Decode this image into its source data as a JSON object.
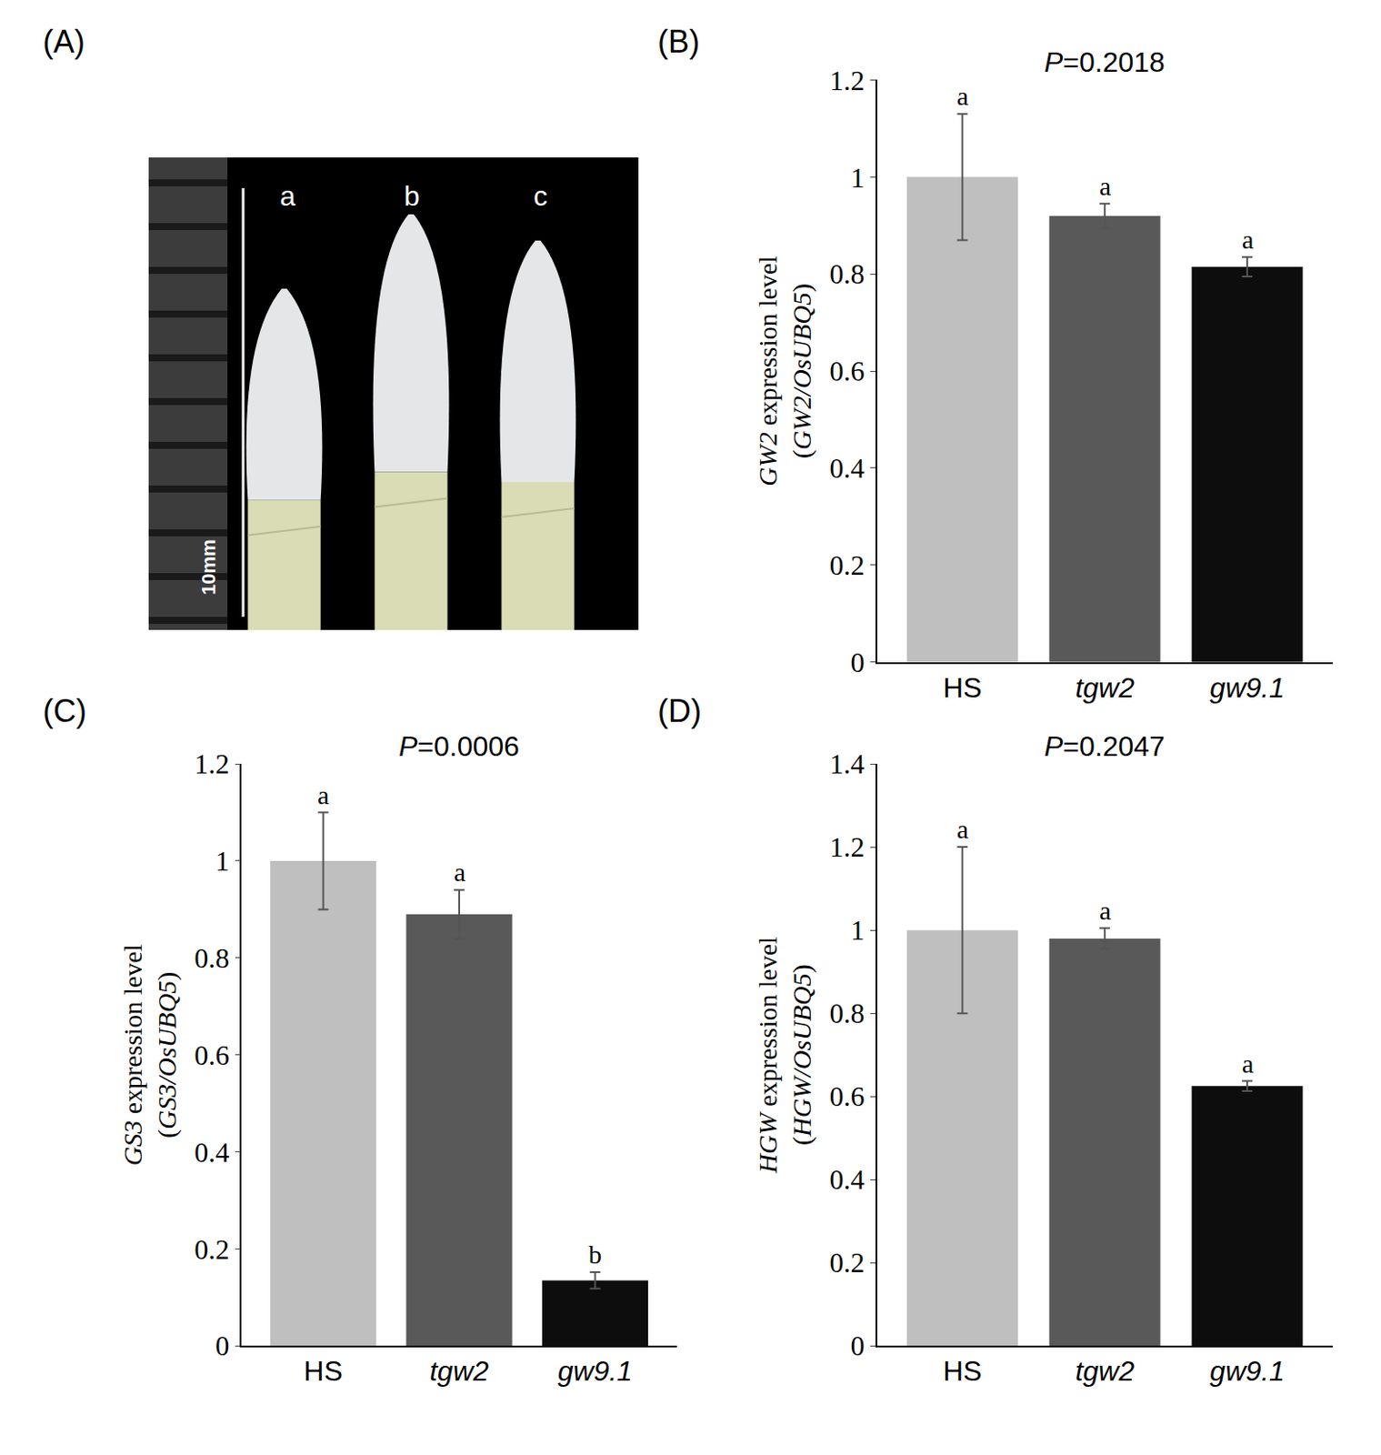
{
  "photo": {
    "panel_label": "(A)",
    "labels": [
      "a",
      "b",
      "c"
    ],
    "scale_label": "10mm"
  },
  "chart_data": [
    {
      "type": "bar",
      "panel_label": "(B)",
      "title": "P=0.2018",
      "y_label": "GW2 expression level (GW2/OsUBQ5)",
      "categories": [
        "HS",
        "tgw2",
        "gw9.1"
      ],
      "values": [
        1.0,
        0.92,
        0.815
      ],
      "errors": [
        0.13,
        0.025,
        0.02
      ],
      "annotations": [
        "a",
        "a",
        "a"
      ],
      "colors": [
        "#bfbfbf",
        "#595959",
        "#0d0d0d"
      ],
      "ylim": [
        0,
        1.2
      ],
      "yticks": [
        0,
        0.2,
        0.4,
        0.6,
        0.8,
        1,
        1.2
      ],
      "grid": false
    },
    {
      "type": "bar",
      "panel_label": "(C)",
      "title": "P=0.0006",
      "y_label": "GS3 expression level (GS3/OsUBQ5)",
      "categories": [
        "HS",
        "tgw2",
        "gw9.1"
      ],
      "values": [
        1.0,
        0.89,
        0.135
      ],
      "errors": [
        0.1,
        0.05,
        0.017
      ],
      "annotations": [
        "a",
        "a",
        "b"
      ],
      "colors": [
        "#bfbfbf",
        "#595959",
        "#0d0d0d"
      ],
      "ylim": [
        0,
        1.2
      ],
      "yticks": [
        0,
        0.2,
        0.4,
        0.6,
        0.8,
        1,
        1.2
      ],
      "grid": false
    },
    {
      "type": "bar",
      "panel_label": "(D)",
      "title": "P=0.2047",
      "y_label": "HGW expression level (HGW/OsUBQ5)",
      "categories": [
        "HS",
        "tgw2",
        "gw9.1"
      ],
      "values": [
        1.0,
        0.98,
        0.625
      ],
      "errors": [
        0.2,
        0.025,
        0.012
      ],
      "annotations": [
        "a",
        "a",
        "a"
      ],
      "colors": [
        "#bfbfbf",
        "#595959",
        "#0d0d0d"
      ],
      "ylim": [
        0,
        1.4
      ],
      "yticks": [
        0,
        0.2,
        0.4,
        0.6,
        0.8,
        1,
        1.2,
        1.4
      ],
      "grid": false
    }
  ]
}
